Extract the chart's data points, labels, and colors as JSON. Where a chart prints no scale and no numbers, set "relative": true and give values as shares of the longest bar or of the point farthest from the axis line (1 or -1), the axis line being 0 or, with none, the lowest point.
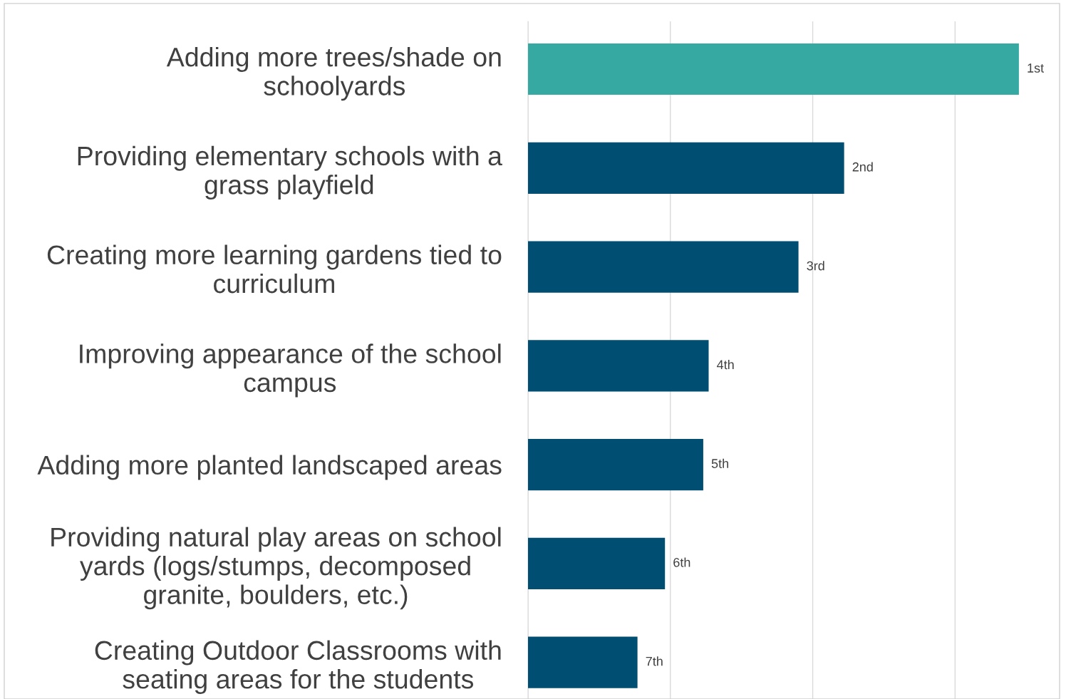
{
  "chart_data": {
    "type": "bar",
    "orientation": "horizontal",
    "relative": true,
    "categories": [
      "Adding more trees/shade on\nschoolyards",
      "Providing elementary schools with a\ngrass playfield",
      "Creating more learning gardens tied to\ncurriculum",
      "Improving appearance of the school\ncampus",
      "Adding more planted landscaped areas",
      "Providing natural play areas on school\nyards (logs/stumps, decomposed\ngranite, boulders, etc.)",
      "Creating Outdoor Classrooms with\nseating areas for the students"
    ],
    "values": [
      1,
      0.644,
      0.551,
      0.368,
      0.357,
      0.279,
      0.223
    ],
    "colors": [
      "#36aaa2",
      "#004f73",
      "#004f73",
      "#004f73",
      "#004f73",
      "#004f73",
      "#004f73"
    ],
    "annotations": [
      {
        "text": "1st",
        "x": 1,
        "y": "Adding more trees/shade on\nschoolyards"
      },
      {
        "text": "2nd",
        "x": 0.644,
        "y": "Providing elementary schools with a\ngrass playfield"
      },
      {
        "text": "3rd",
        "x": 0.551,
        "y": "Creating more learning gardens tied to\ncurriculum"
      },
      {
        "text": "4th",
        "x": 0.368,
        "y": "Improving appearance of the school\ncampus"
      },
      {
        "text": "5th",
        "x": 0.357,
        "y": "Adding more planted landscaped areas"
      },
      {
        "text": "6th",
        "x": 0.279,
        "y": "Providing natural play areas on school\nyards (logs/stumps, decomposed\ngranite, boulders, etc.)"
      },
      {
        "text": "7th",
        "x": 0.223,
        "y": "Creating Outdoor Classrooms with\nseating areas for the students"
      }
    ],
    "grid": "x"
  }
}
